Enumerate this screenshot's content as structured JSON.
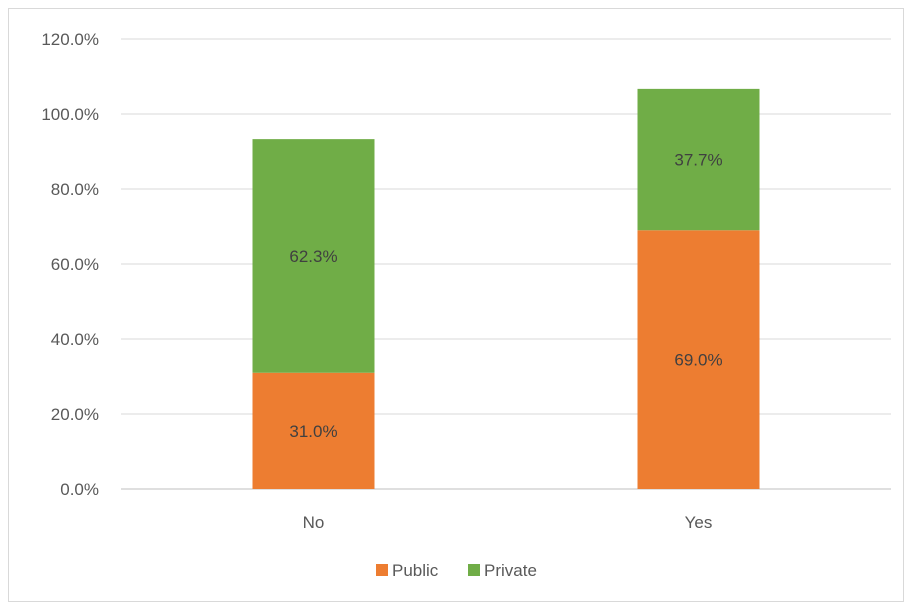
{
  "chart_data": {
    "type": "bar",
    "stacked": true,
    "categories": [
      "No",
      "Yes"
    ],
    "series": [
      {
        "name": "Public",
        "values": [
          31.0,
          69.0
        ],
        "labels": [
          "31.0%",
          "69.0%"
        ],
        "color": "#ed7d31"
      },
      {
        "name": "Private",
        "values": [
          62.3,
          37.7
        ],
        "labels": [
          "62.3%",
          "37.7%"
        ],
        "color": "#70ad47"
      }
    ],
    "yticks": [
      "0.0%",
      "20.0%",
      "40.0%",
      "60.0%",
      "80.0%",
      "100.0%",
      "120.0%"
    ],
    "ylim": [
      0,
      120
    ],
    "grid": true,
    "legend_position": "bottom",
    "title": "",
    "xlabel": "",
    "ylabel": ""
  }
}
